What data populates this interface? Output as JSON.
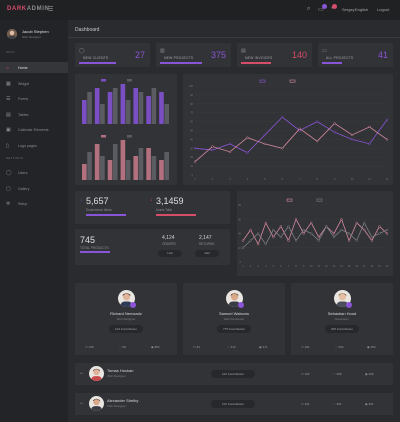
{
  "header": {
    "brand_a": "DARK",
    "brand_b": "ADMIN",
    "menu_icon": "hamburger-icon",
    "user_label": "Sergey",
    "language": "English",
    "logout": "Logout",
    "colors": {
      "accent": "#d64d6a",
      "purple": "#8a54d6"
    }
  },
  "sidebar": {
    "profile_name": "Jacob Stephen",
    "profile_role": "Web Designer",
    "section_main": "MAIN",
    "section_other": "SETTINGS",
    "items": [
      {
        "label": "Home",
        "icon": "home-icon",
        "active": true
      },
      {
        "label": "Widget",
        "icon": "grid-icon",
        "active": false
      },
      {
        "label": "Forms",
        "icon": "form-icon",
        "active": false
      },
      {
        "label": "Tables",
        "icon": "table-icon",
        "active": false
      },
      {
        "label": "Calendar Elements",
        "icon": "calendar-icon",
        "active": false
      },
      {
        "label": "Logo pages",
        "icon": "file-icon",
        "active": false
      }
    ],
    "items2": [
      {
        "label": "Users",
        "icon": "user-icon"
      },
      {
        "label": "Gallery",
        "icon": "image-icon"
      },
      {
        "label": "Setup",
        "icon": "gear-icon"
      }
    ]
  },
  "page_title": "Dashboard",
  "stats": [
    {
      "label": "NEW CLIENTS",
      "value": "27",
      "color": "#8a54d6",
      "fill": 0.55,
      "icon": "user-icon"
    },
    {
      "label": "NEW PROJECTS",
      "value": "375",
      "color": "#8a54d6",
      "fill": 0.62,
      "icon": "chart-icon"
    },
    {
      "label": "NEW INVOICES",
      "value": "140",
      "color": "#d64d6a",
      "fill": 0.45,
      "icon": "doc-icon"
    },
    {
      "label": "ALL PROJECTS",
      "value": "41",
      "color": "#8a54d6",
      "fill": 0.3,
      "icon": "monitor-icon"
    }
  ],
  "kpis": {
    "a_value": "5,657",
    "a_label": "Ecommerce Items",
    "b_value": "3,1459",
    "b_label": "Users Total",
    "total_value": "745",
    "total_label": "TOTAL PRODUCTS",
    "c1_value": "4,124",
    "c1_label": "ORDERS",
    "c2_value": "2,147",
    "c2_label": "RETURNS",
    "c1_button": "Link",
    "c2_button": "Add"
  },
  "people": [
    {
      "name": "Richard Nemzadz",
      "role": "Web Designer",
      "button": "102 Contribution",
      "s1": "155",
      "s2": "59",
      "s3": "880"
    },
    {
      "name": "Samuel Watsons",
      "role": "Web Developer",
      "button": "775 Contribution",
      "s1": "81",
      "s2": "413",
      "s3": "371"
    },
    {
      "name": "Sebastian Hood",
      "role": "Developer",
      "button": "205 Contribution",
      "s1": "191",
      "s2": "254",
      "s3": "290"
    }
  ],
  "rows": [
    {
      "name": "Tomas Hockan",
      "role": "Web Designer",
      "button": "102 Contribution",
      "s1": "102",
      "s2": "366",
      "s3": "266"
    },
    {
      "name": "Alexander Shelby",
      "role": "Web Designer",
      "button": "102 Contribution",
      "s1": "101",
      "s2": "391",
      "s3": "391"
    }
  ],
  "chart_data": [
    {
      "type": "bar",
      "legend": [
        "",
        ""
      ],
      "categories": [
        "1",
        "2",
        "3",
        "4",
        "5",
        "6",
        "7"
      ],
      "series": [
        {
          "values": [
            6,
            9,
            8,
            10,
            9,
            7,
            8
          ]
        },
        {
          "values": [
            8,
            5,
            9,
            6,
            8,
            9,
            5
          ]
        }
      ],
      "colors": [
        "#7b4fc4",
        "#5a5c61"
      ],
      "ylim": [
        0,
        10
      ]
    },
    {
      "type": "bar",
      "legend": [
        "",
        ""
      ],
      "categories": [
        "1",
        "2",
        "3",
        "4",
        "5",
        "6",
        "7"
      ],
      "series": [
        {
          "values": [
            4,
            9,
            5,
            10,
            6,
            8,
            5
          ]
        },
        {
          "values": [
            7,
            6,
            9,
            5,
            8,
            6,
            7
          ]
        }
      ],
      "colors": [
        "#b3707e",
        "#5a5c61"
      ],
      "ylim": [
        0,
        10
      ]
    },
    {
      "type": "line",
      "legend": [
        "",
        ""
      ],
      "x": [
        1,
        2,
        3,
        4,
        5,
        6,
        7,
        8,
        9,
        10,
        11,
        12
      ],
      "series": [
        {
          "values": [
            30,
            28,
            35,
            25,
            45,
            65,
            50,
            60,
            48,
            40,
            35,
            62
          ]
        },
        {
          "values": [
            15,
            32,
            26,
            42,
            35,
            30,
            52,
            38,
            58,
            45,
            54,
            40
          ]
        }
      ],
      "colors": [
        "#8a54d6",
        "#d48a9d"
      ],
      "ylim": [
        0,
        100
      ],
      "yticks": [
        "100",
        "90",
        "80",
        "70",
        "60",
        "50",
        "40",
        "30",
        "20",
        "10",
        "0"
      ]
    },
    {
      "type": "line",
      "legend": [
        "",
        ""
      ],
      "x": [
        1,
        2,
        3,
        4,
        5,
        6,
        7,
        8,
        9,
        10,
        11,
        12,
        13,
        14,
        15,
        16,
        17,
        18,
        19,
        20
      ],
      "series": [
        {
          "values": [
            30,
            45,
            25,
            55,
            35,
            50,
            30,
            60,
            40,
            55,
            35,
            50,
            40,
            60,
            30,
            55,
            45,
            30,
            50,
            40
          ]
        },
        {
          "values": [
            20,
            30,
            40,
            25,
            45,
            35,
            50,
            30,
            45,
            40,
            30,
            50,
            35,
            45,
            40,
            30,
            55,
            35,
            40,
            45
          ]
        }
      ],
      "colors": [
        "#d48a9d",
        "#7d7f84"
      ],
      "ylim": [
        0,
        80
      ],
      "yticks": [
        "80",
        "60",
        "40",
        "20",
        "0"
      ]
    }
  ]
}
